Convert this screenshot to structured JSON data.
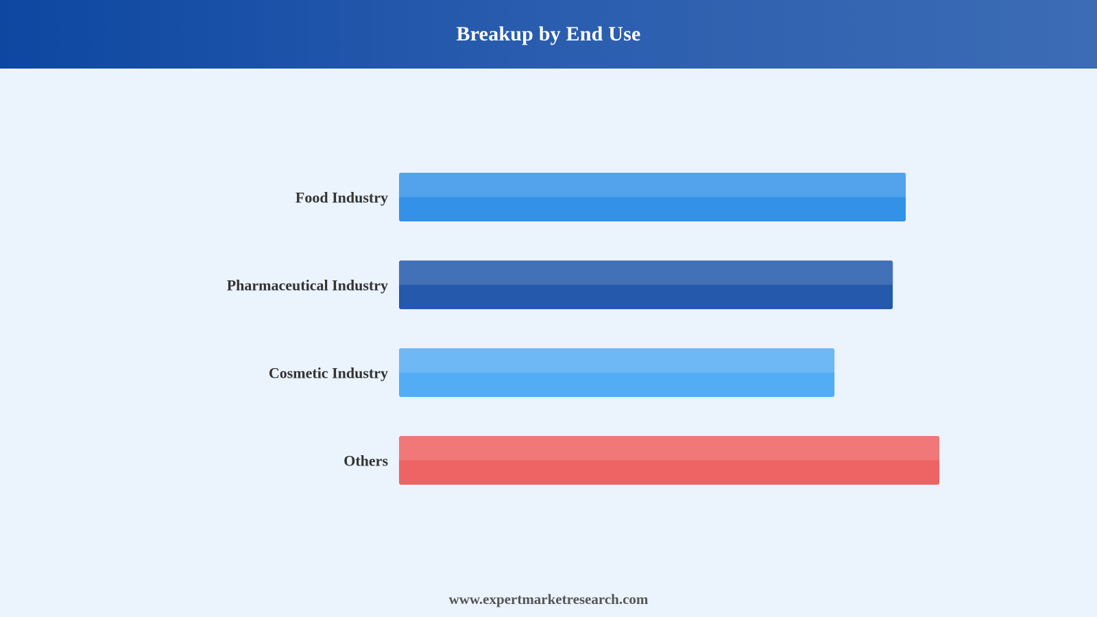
{
  "header": {
    "title": "Breakup by End Use"
  },
  "footer": {
    "url": "www.expertmarketresearch.com"
  },
  "colors": {
    "header_start": "#0D47A1",
    "header_end": "#3C6CB4",
    "background": "#EBF3FC"
  },
  "chart_data": {
    "type": "bar",
    "orientation": "horizontal",
    "title": "Breakup by End Use",
    "xlabel": "",
    "ylabel": "",
    "grid": false,
    "legend": "none",
    "xlim": [
      0,
      100
    ],
    "categories": [
      "Food Industry",
      "Pharmaceutical Industry",
      "Cosmetic Industry",
      "Others"
    ],
    "values": [
      93.8,
      91.4,
      80.6,
      100
    ],
    "colors": [
      {
        "top": "#52A3EC",
        "bottom": "#3391E8"
      },
      {
        "top": "#4371B7",
        "bottom": "#2459AB"
      },
      {
        "top": "#6EB8F6",
        "bottom": "#52ADF4"
      },
      {
        "top": "#F07878",
        "bottom": "#EE6363"
      }
    ]
  }
}
